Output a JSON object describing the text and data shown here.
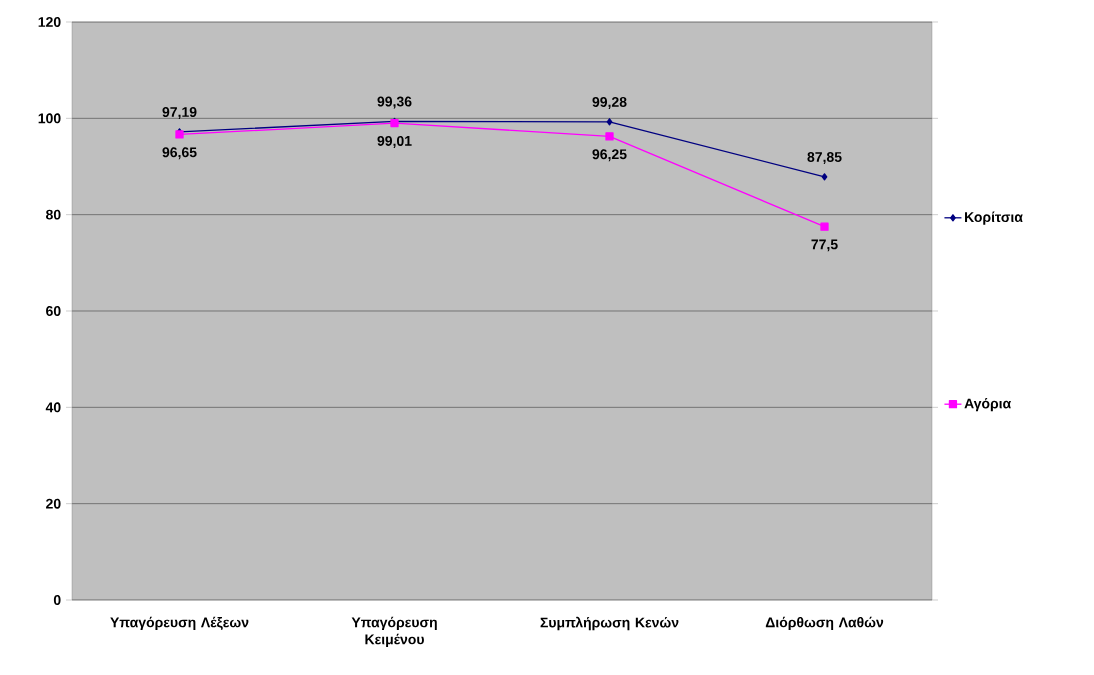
{
  "chart_data": {
    "type": "line",
    "categories": [
      "Υπαγόρευση Λέξεων",
      "Υπαγόρευση Κειμένου",
      "Συμπλήρωση Κενών",
      "Διόρθωση Λαθών"
    ],
    "series": [
      {
        "name": "Κορίτσια",
        "color": "#000080",
        "marker": "diamond",
        "values": [
          97.19,
          99.36,
          99.28,
          87.85
        ],
        "value_labels": [
          "97,19",
          "99,36",
          "99,28",
          "87,85"
        ]
      },
      {
        "name": "Αγόρια",
        "color": "#ff00ff",
        "marker": "square",
        "values": [
          96.65,
          99.01,
          96.25,
          77.5
        ],
        "value_labels": [
          "96,65",
          "99,01",
          "96,25",
          "77,5"
        ]
      }
    ],
    "ylim": [
      0,
      120
    ],
    "yticks": [
      0,
      20,
      40,
      60,
      80,
      100,
      120
    ],
    "grid": "y",
    "legend": "right",
    "line_style": "solid"
  }
}
